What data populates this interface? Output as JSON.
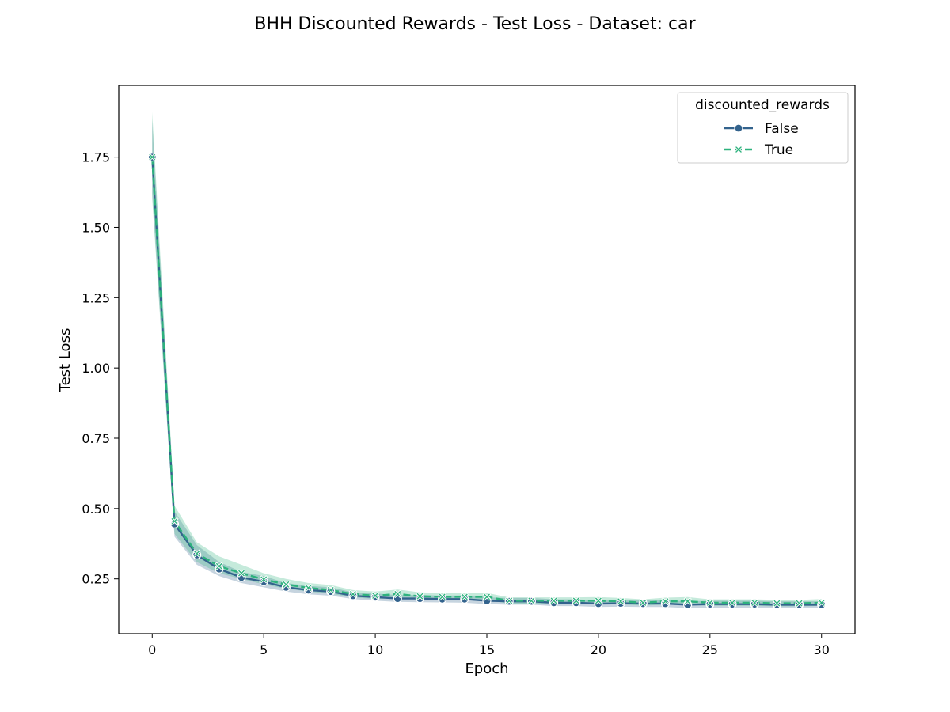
{
  "chart_data": {
    "type": "line",
    "title": "BHH Discounted Rewards - Test Loss - Dataset: car",
    "xlabel": "Epoch",
    "ylabel": "Test Loss",
    "xlim": [
      -1.5,
      31.5
    ],
    "ylim": [
      0.055,
      2.005
    ],
    "xticks": [
      0,
      5,
      10,
      15,
      20,
      25,
      30
    ],
    "yticks": [
      0.25,
      0.5,
      0.75,
      1.0,
      1.25,
      1.5,
      1.75
    ],
    "ytick_labels": [
      "0.25",
      "0.50",
      "0.75",
      "1.00",
      "1.25",
      "1.50",
      "1.75"
    ],
    "grid": false,
    "legend": {
      "title": "discounted_rewards",
      "placement": "top-right"
    },
    "x": [
      0,
      1,
      2,
      3,
      4,
      5,
      6,
      7,
      8,
      9,
      10,
      11,
      12,
      13,
      14,
      15,
      16,
      17,
      18,
      19,
      20,
      21,
      22,
      23,
      24,
      25,
      26,
      27,
      28,
      29,
      30
    ],
    "series": [
      {
        "name": "False",
        "color": "#33638d",
        "marker": "circle",
        "dash": "solid",
        "values": [
          1.75,
          0.445,
          0.335,
          0.285,
          0.255,
          0.24,
          0.22,
          0.21,
          0.205,
          0.19,
          0.185,
          0.18,
          0.18,
          0.178,
          0.178,
          0.172,
          0.17,
          0.17,
          0.165,
          0.165,
          0.162,
          0.163,
          0.162,
          0.162,
          0.158,
          0.16,
          0.16,
          0.16,
          0.158,
          0.158,
          0.158
        ],
        "ci_lower": [
          1.62,
          0.4,
          0.3,
          0.26,
          0.235,
          0.22,
          0.205,
          0.195,
          0.19,
          0.178,
          0.172,
          0.168,
          0.167,
          0.166,
          0.165,
          0.16,
          0.158,
          0.158,
          0.153,
          0.153,
          0.15,
          0.151,
          0.15,
          0.15,
          0.146,
          0.148,
          0.148,
          0.148,
          0.146,
          0.146,
          0.146
        ],
        "ci_upper": [
          1.88,
          0.49,
          0.37,
          0.31,
          0.275,
          0.26,
          0.235,
          0.225,
          0.22,
          0.202,
          0.198,
          0.192,
          0.193,
          0.19,
          0.191,
          0.184,
          0.182,
          0.182,
          0.177,
          0.177,
          0.174,
          0.175,
          0.174,
          0.174,
          0.17,
          0.172,
          0.172,
          0.172,
          0.17,
          0.17,
          0.17
        ]
      },
      {
        "name": "True",
        "color": "#2db27d",
        "marker": "x",
        "dash": "dashed",
        "values": [
          1.75,
          0.455,
          0.34,
          0.295,
          0.27,
          0.248,
          0.23,
          0.218,
          0.21,
          0.196,
          0.19,
          0.196,
          0.188,
          0.186,
          0.186,
          0.186,
          0.172,
          0.172,
          0.172,
          0.172,
          0.172,
          0.17,
          0.165,
          0.17,
          0.17,
          0.165,
          0.165,
          0.165,
          0.163,
          0.163,
          0.165
        ],
        "ci_lower": [
          1.6,
          0.41,
          0.31,
          0.27,
          0.25,
          0.23,
          0.215,
          0.205,
          0.197,
          0.184,
          0.178,
          0.182,
          0.176,
          0.174,
          0.174,
          0.174,
          0.162,
          0.162,
          0.161,
          0.161,
          0.161,
          0.159,
          0.155,
          0.158,
          0.157,
          0.154,
          0.154,
          0.154,
          0.152,
          0.152,
          0.154
        ],
        "ci_upper": [
          1.91,
          0.51,
          0.38,
          0.33,
          0.3,
          0.27,
          0.25,
          0.235,
          0.228,
          0.21,
          0.205,
          0.212,
          0.202,
          0.2,
          0.2,
          0.2,
          0.184,
          0.184,
          0.184,
          0.184,
          0.185,
          0.182,
          0.177,
          0.183,
          0.185,
          0.177,
          0.177,
          0.177,
          0.175,
          0.175,
          0.178
        ]
      }
    ]
  }
}
